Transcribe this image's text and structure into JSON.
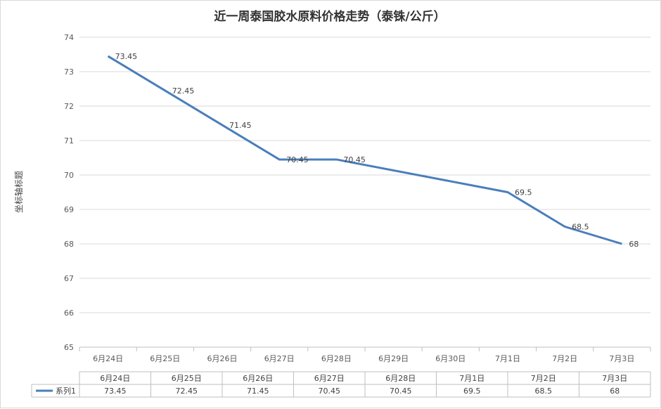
{
  "chart_data": {
    "type": "line",
    "title": "近一周泰国胶水原料价格走势（泰铢/公斤）",
    "ylabel": "坐标轴标题",
    "ylim": [
      65,
      74
    ],
    "ytick_step": 1,
    "grid": true,
    "categories": [
      "6月24日",
      "6月25日",
      "6月26日",
      "6月27日",
      "6月28日",
      "6月29日",
      "6月30日",
      "7月1日",
      "7月2日",
      "7月3日"
    ],
    "series": [
      {
        "name": "系列1",
        "color": "#4a7ebb",
        "values": [
          73.45,
          72.45,
          71.45,
          70.45,
          70.45,
          null,
          null,
          69.5,
          68.5,
          68
        ]
      }
    ],
    "table": {
      "columns": [
        "6月24日",
        "6月25日",
        "6月26日",
        "6月27日",
        "6月28日",
        "7月1日",
        "7月2日",
        "7月3日"
      ],
      "series_name": "系列1",
      "values": [
        "73.45",
        "72.45",
        "71.45",
        "70.45",
        "70.45",
        "69.5",
        "68.5",
        "68"
      ]
    }
  }
}
